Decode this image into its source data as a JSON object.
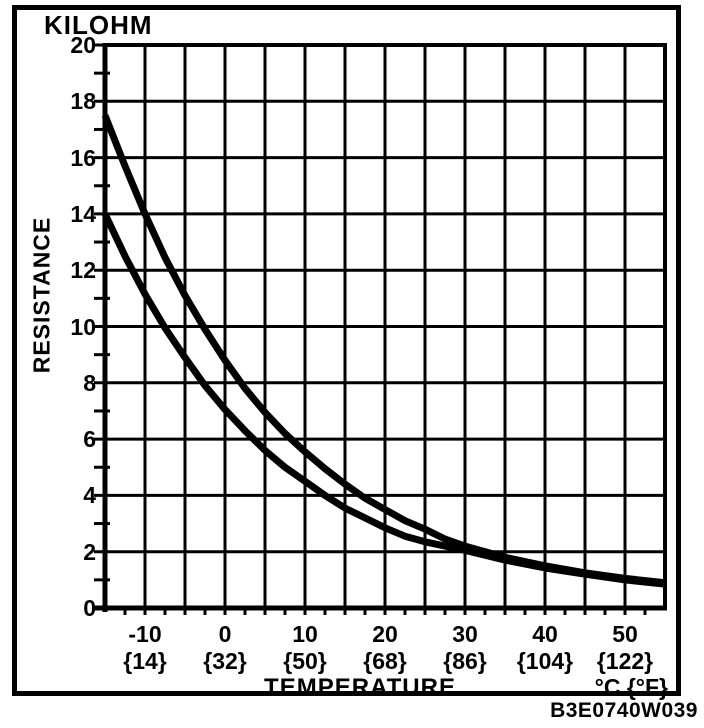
{
  "figure": {
    "unit_label": "KILOHM",
    "ylabel": "RESISTANCE",
    "xlabel": "TEMPERATURE",
    "x_unit_label": "°C {°F}",
    "figure_code": "B3E0740W039"
  },
  "chart_data": {
    "type": "line",
    "title": "",
    "ylabel": "RESISTANCE",
    "y_unit": "KILOHM",
    "xlabel": "TEMPERATURE",
    "x_unit": "°C {°F}",
    "x_range": [
      -15,
      55
    ],
    "y_range": [
      0,
      20
    ],
    "grid": "on",
    "y_major_step": 2,
    "y_minor_step": 1,
    "x_major_step": 5,
    "x_minor_step": 2.5,
    "y_tick_labels": [
      {
        "label": "20",
        "value": 20
      },
      {
        "label": "18",
        "value": 18
      },
      {
        "label": "16",
        "value": 16
      },
      {
        "label": "14",
        "value": 14
      },
      {
        "label": "12",
        "value": 12
      },
      {
        "label": "10",
        "value": 10
      },
      {
        "label": "8",
        "value": 8
      },
      {
        "label": "6",
        "value": 6
      },
      {
        "label": "4",
        "value": 4
      },
      {
        "label": "2",
        "value": 2
      },
      {
        "label": "0",
        "value": 0
      }
    ],
    "x_tick_labels": [
      {
        "celsius": "-10",
        "fahrenheit": "{14}",
        "value": -10
      },
      {
        "celsius": "0",
        "fahrenheit": "{32}",
        "value": 0
      },
      {
        "celsius": "10",
        "fahrenheit": "{50}",
        "value": 10
      },
      {
        "celsius": "20",
        "fahrenheit": "{68}",
        "value": 20
      },
      {
        "celsius": "30",
        "fahrenheit": "{86}",
        "value": 30
      },
      {
        "celsius": "40",
        "fahrenheit": "{104}",
        "value": 40
      },
      {
        "celsius": "50",
        "fahrenheit": "{122}",
        "value": 50
      }
    ],
    "series": [
      {
        "name": "curve-upper",
        "temperature_c": [
          -15,
          -12.5,
          -10,
          -7.5,
          -5,
          -2.5,
          0,
          2.5,
          5,
          7.5,
          10,
          12.5,
          15,
          17.5,
          20,
          22.5,
          25,
          27.5,
          30,
          35,
          40,
          45,
          50,
          55
        ],
        "resistance_kilohm": [
          17.5,
          15.7,
          14.0,
          12.45,
          11.1,
          9.9,
          8.8,
          7.8,
          6.95,
          6.2,
          5.55,
          4.95,
          4.4,
          3.9,
          3.5,
          3.1,
          2.8,
          2.45,
          2.2,
          1.8,
          1.5,
          1.25,
          1.05,
          0.9
        ]
      },
      {
        "name": "curve-lower",
        "temperature_c": [
          -15,
          -12.5,
          -10,
          -7.5,
          -5,
          -2.5,
          0,
          2.5,
          5,
          7.5,
          10,
          12.5,
          15,
          17.5,
          20,
          22.5,
          25,
          27.5,
          30,
          35,
          40,
          45,
          50,
          55
        ],
        "resistance_kilohm": [
          14.0,
          12.5,
          11.15,
          9.95,
          8.9,
          7.9,
          7.05,
          6.3,
          5.6,
          5.0,
          4.5,
          4.0,
          3.55,
          3.2,
          2.85,
          2.55,
          2.35,
          2.2,
          2.05,
          1.7,
          1.42,
          1.2,
          1.0,
          0.85
        ]
      }
    ],
    "figure_code": "B3E0740W039"
  }
}
